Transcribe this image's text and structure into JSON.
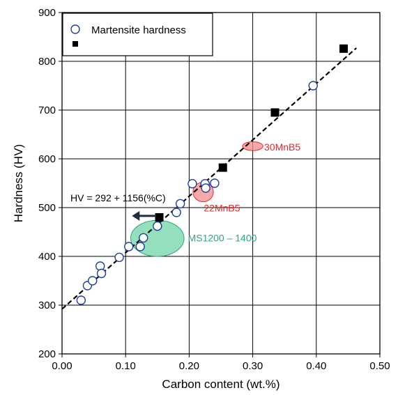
{
  "chart_data": {
    "type": "scatter",
    "xlabel": "Carbon content (wt.%)",
    "ylabel": "Hardness (HV)",
    "xlim": [
      0.0,
      0.5
    ],
    "ylim": [
      200,
      900
    ],
    "x_ticks": [
      "0.00",
      "0.10",
      "0.20",
      "0.30",
      "0.40",
      "0.50"
    ],
    "y_ticks": [
      "200",
      "300",
      "400",
      "500",
      "600",
      "700",
      "800",
      "900"
    ],
    "grid": true,
    "legend_position": "top-left",
    "series": [
      {
        "name": "Martensite hardness",
        "marker": "open-circle",
        "color": "#1f3ea0",
        "points": [
          [
            0.03,
            310
          ],
          [
            0.04,
            340
          ],
          [
            0.048,
            350
          ],
          [
            0.06,
            380
          ],
          [
            0.062,
            365
          ],
          [
            0.09,
            398
          ],
          [
            0.105,
            420
          ],
          [
            0.123,
            420
          ],
          [
            0.128,
            438
          ],
          [
            0.15,
            462
          ],
          [
            0.18,
            490
          ],
          [
            0.186,
            508
          ],
          [
            0.205,
            549
          ],
          [
            0.225,
            549
          ],
          [
            0.226,
            540
          ],
          [
            0.24,
            550
          ],
          [
            0.395,
            750
          ]
        ]
      },
      {
        "name": "",
        "marker": "filled-square",
        "color": "#000000",
        "points": [
          [
            0.153,
            480
          ],
          [
            0.253,
            582
          ],
          [
            0.335,
            695
          ],
          [
            0.443,
            826
          ]
        ]
      }
    ],
    "fit_line": {
      "equation": "HV = 292 + 1156(%C)",
      "intercept": 292,
      "slope": 1156,
      "x_range": [
        0.0,
        0.463
      ],
      "style": "dashed",
      "color": "#000000"
    },
    "regions": [
      {
        "label": "30MnB5",
        "cx": 0.3,
        "cy": 626,
        "rx": 0.016,
        "ry": 9,
        "color": "#e8262b",
        "fill": "#f48c8c"
      },
      {
        "label": "22MnB5",
        "cx": 0.222,
        "cy": 532,
        "rx": 0.016,
        "ry": 20,
        "color": "#e8262b",
        "fill": "#f48c8c"
      },
      {
        "label": "MS1200 – 1400",
        "cx": 0.15,
        "cy": 437,
        "rx": 0.042,
        "ry": 37,
        "color": "#2aa876",
        "fill": "#6fd4a8"
      }
    ],
    "arrow": {
      "from": [
        0.15,
        483
      ],
      "to": [
        0.11,
        483
      ],
      "color": "#1f2d3d"
    }
  }
}
